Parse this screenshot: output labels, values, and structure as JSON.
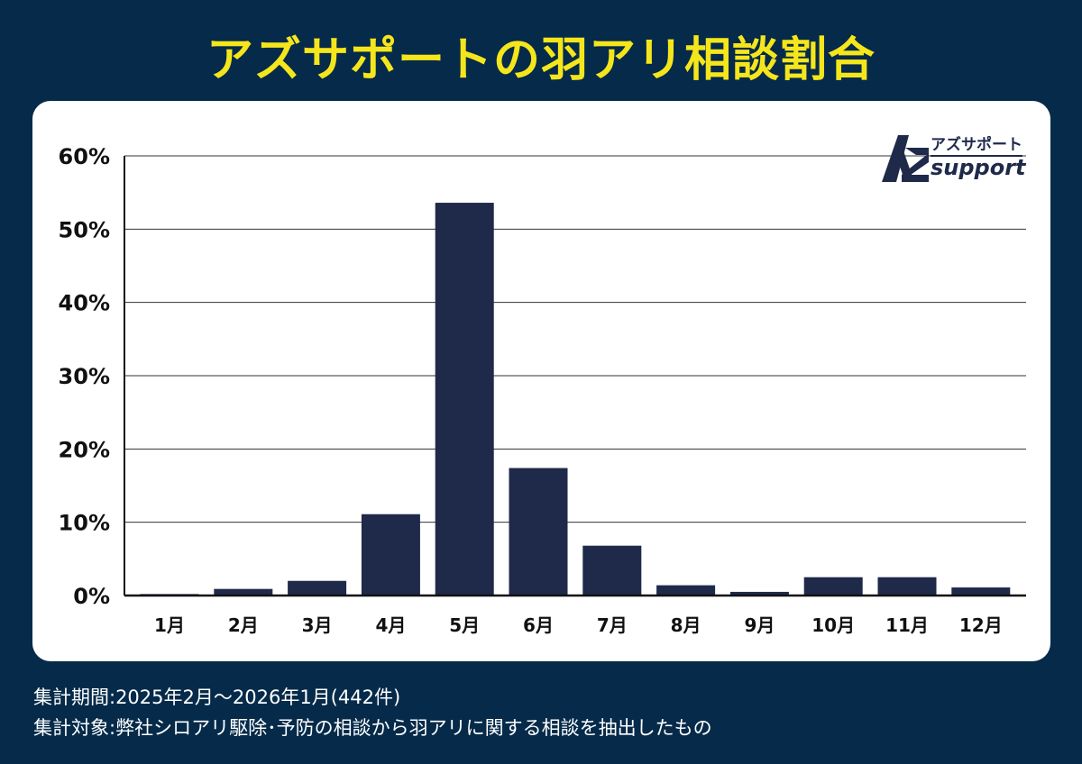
{
  "title": "アズサポートの羽アリ相談割合",
  "logo": {
    "kana": "アズサポート",
    "word": "support",
    "mark": "AZ monogram"
  },
  "chart_data": {
    "type": "bar",
    "categories": [
      "1月",
      "2月",
      "3月",
      "4月",
      "5月",
      "6月",
      "7月",
      "8月",
      "9月",
      "10月",
      "11月",
      "12月"
    ],
    "values": [
      0.2,
      0.9,
      2.0,
      11.1,
      53.6,
      17.4,
      6.8,
      1.4,
      0.5,
      2.5,
      2.5,
      1.1
    ],
    "ylim": [
      0,
      60
    ],
    "yticks": [
      0,
      10,
      20,
      30,
      40,
      50,
      60
    ],
    "ytick_labels": [
      "0%",
      "10%",
      "20%",
      "30%",
      "40%",
      "50%",
      "60%"
    ],
    "grid": true,
    "bar_color": "#1f2a4a"
  },
  "footnotes": {
    "period": "集計期間:2025年2月～2026年1月(442件)",
    "target": "集計対象:弊社シロアリ駆除･予防の相談から羽アリに関する相談を抽出したもの"
  },
  "colors": {
    "background": "#052a4a",
    "title": "#f5e61c",
    "card": "#ffffff",
    "bar": "#1f2a4a"
  }
}
